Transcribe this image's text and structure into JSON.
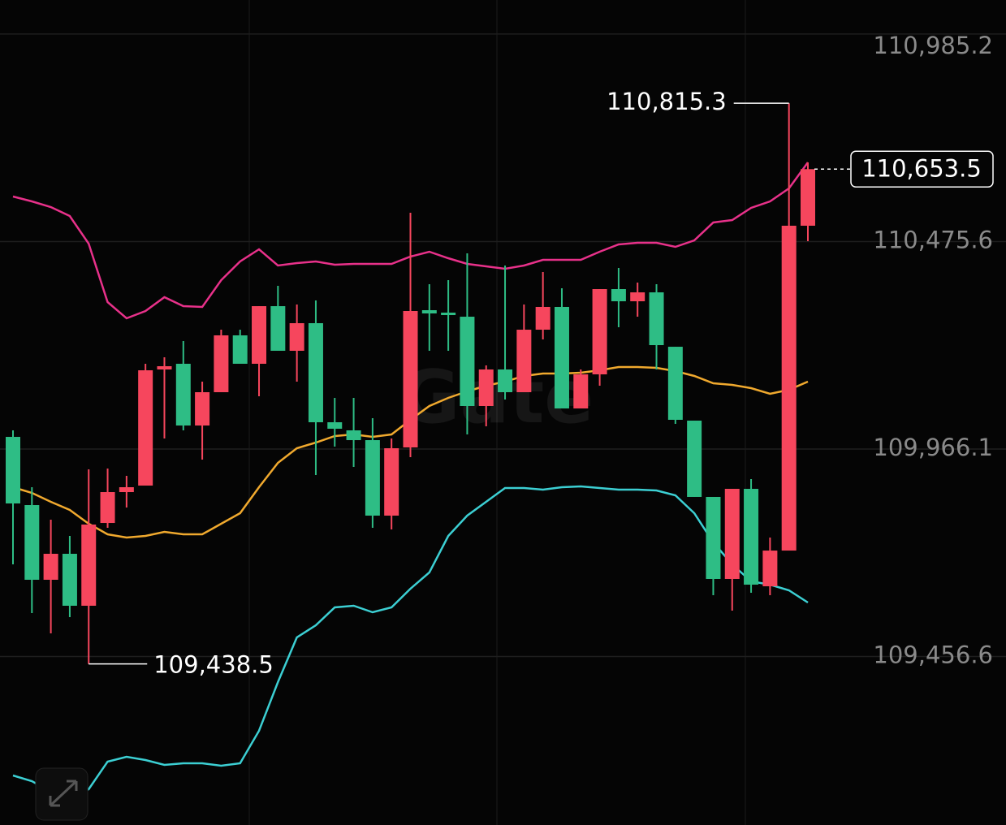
{
  "chart_data": {
    "type": "candlestick",
    "watermark": "Gate",
    "ylim": [
      109042.9,
      111068.8
    ],
    "yticks": [
      {
        "value": 110985.2,
        "label": "110,985.2"
      },
      {
        "value": 110475.6,
        "label": "110,475.6"
      },
      {
        "value": 109966.1,
        "label": "109,966.1"
      },
      {
        "value": 109456.6,
        "label": "109,456.6"
      }
    ],
    "grid": true,
    "up_color": "#f6465d",
    "down_color": "#2ebd85",
    "candles": {
      "open": [
        109996.0,
        109828.5,
        109645.1,
        109708.9,
        109581.3,
        109784.6,
        109860.4,
        109876.4,
        110161.5,
        110175.5,
        110023.9,
        110105.7,
        110245.3,
        110175.5,
        110317.0,
        110207.4,
        110275.2,
        110031.9,
        110012.0,
        109988.0,
        109802.6,
        109970.1,
        110307.1,
        110301.1,
        110291.1,
        110071.8,
        110161.5,
        110105.7,
        110259.2,
        110315.1,
        110065.8,
        110149.5,
        110358.9,
        110329.0,
        110350.9,
        110217.3,
        110035.9,
        109848.5,
        109647.1,
        109868.4,
        109629.1,
        109716.8,
        110514.5
      ],
      "high": [
        110012.0,
        109872.4,
        109792.6,
        109752.7,
        109916.2,
        109918.2,
        109900.3,
        110175.5,
        110191.4,
        110231.3,
        110131.6,
        110259.2,
        110259.2,
        110317.0,
        110366.9,
        110321.0,
        110331.0,
        110091.7,
        110091.7,
        110041.9,
        109992.0,
        110546.4,
        110370.9,
        110380.9,
        110446.7,
        110171.5,
        110416.7,
        110321.0,
        110400.8,
        110360.9,
        110161.5,
        110358.9,
        110410.8,
        110374.9,
        110370.9,
        110217.3,
        110035.9,
        109848.5,
        109868.4,
        109892.3,
        109748.8,
        110815.3,
        110670.0
      ],
      "low": [
        109683.0,
        109563.3,
        109513.5,
        109553.3,
        109438.5,
        109772.7,
        109822.5,
        109876.4,
        109992.0,
        110012.0,
        109940.2,
        110105.7,
        110175.5,
        110095.7,
        110207.4,
        110131.6,
        109902.3,
        109972.1,
        109922.2,
        109772.7,
        109768.7,
        109946.2,
        110207.4,
        110207.4,
        110002.0,
        110021.9,
        110087.7,
        110105.7,
        110235.3,
        110065.8,
        110065.8,
        110121.6,
        110265.2,
        110291.1,
        110161.5,
        110027.9,
        109848.5,
        109607.2,
        109569.3,
        109613.2,
        109607.2,
        109716.8,
        110476.6
      ],
      "close": [
        109832.5,
        109645.1,
        109708.9,
        109581.3,
        109780.7,
        109860.4,
        109872.4,
        110159.5,
        110169.5,
        110023.9,
        110105.7,
        110245.3,
        110175.5,
        110317.0,
        110207.4,
        110275.2,
        110031.9,
        110016.0,
        109988.0,
        109802.6,
        109968.1,
        110305.1,
        110299.1,
        110295.1,
        110071.8,
        110161.5,
        110105.7,
        110259.2,
        110315.1,
        110065.8,
        110149.5,
        110358.9,
        110329.0,
        110350.9,
        110221.3,
        110037.9,
        109848.5,
        109647.1,
        109868.4,
        109633.1,
        109716.8,
        110514.5,
        110653.5
      ]
    },
    "bands": [
      {
        "color": "#e8318a",
        "values": [
          110586.2,
          110574.3,
          110560.3,
          110538.4,
          110470.6,
          110327.0,
          110287.1,
          110305.1,
          110339.0,
          110317.0,
          110315.1,
          110380.9,
          110426.7,
          110456.6,
          110416.7,
          110422.7,
          110426.7,
          110418.7,
          110420.7,
          110420.7,
          110420.7,
          110438.7,
          110450.6,
          110434.7,
          110420.7,
          110414.8,
          110408.8,
          110416.7,
          110430.7,
          110430.7,
          110430.7,
          110450.6,
          110468.6,
          110472.6,
          110472.6,
          110462.6,
          110478.6,
          110522.4,
          110528.4,
          110558.3,
          110574.3,
          110606.2,
          110670.0
        ]
      },
      {
        "color": "#f0a92e",
        "values": [
          109872.4,
          109858.4,
          109836.5,
          109816.5,
          109782.7,
          109756.7,
          109748.8,
          109752.7,
          109762.7,
          109756.7,
          109756.7,
          109782.7,
          109808.6,
          109872.4,
          109932.2,
          109968.1,
          109982.1,
          109998.0,
          110002.0,
          109996.0,
          110002.0,
          110037.9,
          110071.8,
          110091.7,
          110107.7,
          110121.6,
          110131.6,
          110145.6,
          110151.5,
          110151.5,
          110153.5,
          110159.5,
          110167.5,
          110167.5,
          110165.5,
          110157.5,
          110145.6,
          110127.6,
          110123.6,
          110115.7,
          110101.7,
          110111.7,
          110131.6
        ]
      },
      {
        "color": "#3ccfd3",
        "values": [
          109164.5,
          109150.6,
          109124.6,
          109108.7,
          109130.6,
          109198.4,
          109210.4,
          109202.4,
          109190.4,
          109194.4,
          109194.4,
          109188.4,
          109194.4,
          109274.2,
          109393.8,
          109503.5,
          109533.4,
          109577.3,
          109581.3,
          109565.3,
          109577.3,
          109623.1,
          109663.0,
          109752.7,
          109802.6,
          109836.5,
          109870.4,
          109870.4,
          109866.4,
          109872.4,
          109874.4,
          109870.4,
          109866.4,
          109866.4,
          109864.4,
          109852.4,
          109808.6,
          109736.8,
          109683.0,
          109641.1,
          109633.1,
          109619.1,
          109589.2
        ]
      }
    ],
    "max_label": {
      "value": 110815.3,
      "label": "110,815.3"
    },
    "min_label": {
      "value": 109438.5,
      "label": "109,438.5"
    },
    "last_price": {
      "value": 110653.5,
      "label": "110,653.5"
    }
  }
}
